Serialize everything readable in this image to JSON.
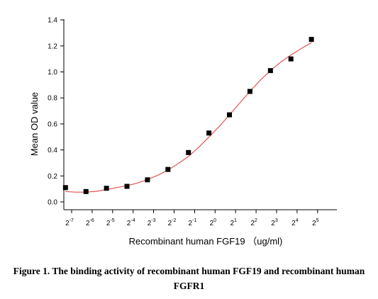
{
  "chart_data": {
    "type": "scatter",
    "xlabel": "Recombinant human  FGF19 （ug/ml)",
    "ylabel": "Mean OD value",
    "x_scale": "log2",
    "x_ticks_exponents": [
      -7,
      -6,
      -5,
      -4,
      -3,
      -2,
      -1,
      0,
      1,
      2,
      3,
      4,
      5
    ],
    "x_tick_base": "2",
    "y_ticks": [
      "0.0",
      "0.2",
      "0.4",
      "0.6",
      "0.8",
      "1.0",
      "1.2",
      "1.4"
    ],
    "ylim": [
      -0.05,
      1.4
    ],
    "grid": false,
    "points": [
      {
        "x": -7.3,
        "y": 0.11
      },
      {
        "x": -6.3,
        "y": 0.08
      },
      {
        "x": -5.3,
        "y": 0.105
      },
      {
        "x": -4.3,
        "y": 0.12
      },
      {
        "x": -3.3,
        "y": 0.17
      },
      {
        "x": -2.3,
        "y": 0.25
      },
      {
        "x": -1.3,
        "y": 0.38
      },
      {
        "x": -0.3,
        "y": 0.53
      },
      {
        "x": 0.7,
        "y": 0.67
      },
      {
        "x": 1.7,
        "y": 0.85
      },
      {
        "x": 2.7,
        "y": 1.01
      },
      {
        "x": 3.7,
        "y": 1.1
      },
      {
        "x": 4.7,
        "y": 1.25
      }
    ],
    "fit_curve": [
      {
        "x": -7.3,
        "y": 0.08
      },
      {
        "x": -6.8,
        "y": 0.075
      },
      {
        "x": -6.3,
        "y": 0.075
      },
      {
        "x": -5.8,
        "y": 0.082
      },
      {
        "x": -5.3,
        "y": 0.095
      },
      {
        "x": -4.8,
        "y": 0.11
      },
      {
        "x": -4.3,
        "y": 0.125
      },
      {
        "x": -3.8,
        "y": 0.145
      },
      {
        "x": -3.3,
        "y": 0.172
      },
      {
        "x": -2.8,
        "y": 0.205
      },
      {
        "x": -2.3,
        "y": 0.245
      },
      {
        "x": -1.8,
        "y": 0.295
      },
      {
        "x": -1.3,
        "y": 0.35
      },
      {
        "x": -0.8,
        "y": 0.42
      },
      {
        "x": -0.3,
        "y": 0.5
      },
      {
        "x": 0.2,
        "y": 0.58
      },
      {
        "x": 0.7,
        "y": 0.67
      },
      {
        "x": 1.2,
        "y": 0.76
      },
      {
        "x": 1.7,
        "y": 0.85
      },
      {
        "x": 2.2,
        "y": 0.935
      },
      {
        "x": 2.7,
        "y": 1.01
      },
      {
        "x": 3.2,
        "y": 1.075
      },
      {
        "x": 3.7,
        "y": 1.13
      },
      {
        "x": 4.2,
        "y": 1.18
      },
      {
        "x": 4.7,
        "y": 1.225
      }
    ],
    "marker_color": "#000000",
    "curve_color": "#e05555"
  },
  "caption": {
    "line1": "Figure 1. The binding activity of recombinant human FGF19 and recombinant human",
    "line2": "FGFR1"
  }
}
